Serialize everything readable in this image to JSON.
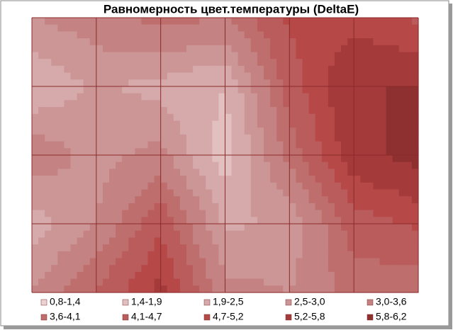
{
  "chart_data": {
    "type": "contour",
    "title": "Равномерность цвет.температуры (DeltaE)",
    "grid": true,
    "z": [
      [
        3.0,
        3.3,
        3.8,
        3.6,
        4.8,
        5.0,
        4.6
      ],
      [
        2.0,
        2.6,
        2.3,
        1.9,
        4.4,
        5.8,
        5.8
      ],
      [
        3.4,
        2.8,
        3.2,
        1.6,
        3.8,
        5.6,
        6.0
      ],
      [
        2.2,
        3.0,
        4.6,
        2.4,
        2.6,
        4.4,
        4.8
      ],
      [
        3.0,
        4.2,
        5.4,
        3.2,
        3.0,
        3.8,
        3.6
      ]
    ],
    "bands": [
      {
        "label": "0,8-1,4",
        "from": 0.8,
        "to": 1.4,
        "color": "#ecd2d2"
      },
      {
        "label": "1,4-1,9",
        "from": 1.4,
        "to": 1.9,
        "color": "#e2c0c0"
      },
      {
        "label": "1,9-2,5",
        "from": 1.9,
        "to": 2.5,
        "color": "#d6aaaa"
      },
      {
        "label": "2,5-3,0",
        "from": 2.5,
        "to": 3.0,
        "color": "#cc9696"
      },
      {
        "label": "3,0-3,6",
        "from": 3.0,
        "to": 3.6,
        "color": "#c48282"
      },
      {
        "label": "3,6-4,1",
        "from": 3.6,
        "to": 4.1,
        "color": "#bf6e6e"
      },
      {
        "label": "4,1-4,7",
        "from": 4.1,
        "to": 4.7,
        "color": "#bb5c5c"
      },
      {
        "label": "4,7-5,2",
        "from": 4.7,
        "to": 5.2,
        "color": "#b64848"
      },
      {
        "label": "5,2-5,8",
        "from": 5.2,
        "to": 5.8,
        "color": "#a53a3a"
      },
      {
        "label": "5,8-6,2",
        "from": 5.8,
        "to": 6.2,
        "color": "#8e3030"
      }
    ]
  }
}
